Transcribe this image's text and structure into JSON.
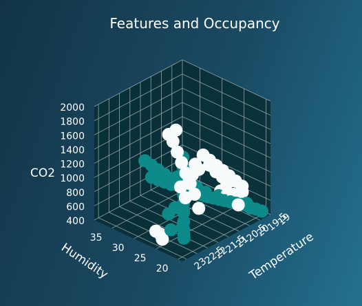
{
  "chart_data": {
    "type": "scatter3d",
    "title": "Features and Occupancy",
    "axes": {
      "x": {
        "label": "Humidity",
        "range": [
          19,
          39
        ],
        "ticks": [
          "20",
          "25",
          "30",
          "35"
        ],
        "tick_values": [
          20,
          25,
          30,
          35
        ]
      },
      "y": {
        "label": "Temperature",
        "range": [
          19,
          23.2
        ],
        "ticks": [
          "19",
          "19.5",
          "20",
          "20.5",
          "21",
          "21.5",
          "22",
          "22.5",
          "23"
        ],
        "tick_values": [
          19,
          19.5,
          20,
          20.5,
          21,
          21.5,
          22,
          22.5,
          23
        ]
      },
      "z": {
        "label": "CO2",
        "range": [
          400,
          2000
        ],
        "ticks": [
          "400",
          "600",
          "800",
          "1000",
          "1200",
          "1400",
          "1600",
          "1800",
          "2000"
        ],
        "tick_values": [
          400,
          600,
          800,
          1000,
          1200,
          1400,
          1600,
          1800,
          2000
        ]
      }
    },
    "grid": true,
    "colors": {
      "occupancy_0": "#0e8a8a",
      "occupancy_1": "#f7fbfb",
      "pane": "#072e33",
      "grid": "#9aa9ad",
      "text": "#ffffff"
    },
    "series": [
      {
        "color": "#0e8a8a",
        "points": [
          [
            20.0,
            19.2,
            450
          ],
          [
            20.8,
            19.3,
            470
          ],
          [
            21.6,
            19.4,
            480
          ],
          [
            22.4,
            19.4,
            490
          ],
          [
            23.2,
            19.5,
            500
          ],
          [
            24.0,
            19.6,
            510
          ],
          [
            24.8,
            19.7,
            520
          ],
          [
            25.6,
            19.8,
            530
          ],
          [
            26.4,
            19.9,
            540
          ],
          [
            27.2,
            20.0,
            550
          ],
          [
            28.0,
            20.1,
            560
          ],
          [
            28.8,
            20.2,
            580
          ],
          [
            29.6,
            20.3,
            600
          ],
          [
            30.4,
            20.4,
            620
          ],
          [
            31.2,
            20.5,
            640
          ],
          [
            22.5,
            19.4,
            520
          ],
          [
            24.5,
            19.6,
            560
          ],
          [
            26.5,
            19.9,
            590
          ],
          [
            28.5,
            20.1,
            610
          ],
          [
            30.5,
            20.3,
            640
          ],
          [
            32.0,
            20.6,
            680
          ],
          [
            33.0,
            20.8,
            700
          ],
          [
            34.0,
            20.9,
            720
          ],
          [
            35.0,
            21.0,
            740
          ],
          [
            36.0,
            21.1,
            760
          ],
          [
            33.5,
            20.7,
            750
          ],
          [
            34.5,
            20.8,
            800
          ],
          [
            35.5,
            20.9,
            850
          ],
          [
            36.5,
            21.0,
            900
          ],
          [
            37.5,
            21.1,
            950
          ],
          [
            30.0,
            20.4,
            700
          ],
          [
            31.0,
            20.6,
            760
          ],
          [
            32.0,
            20.7,
            820
          ],
          [
            29.5,
            20.3,
            680
          ],
          [
            22.5,
            22.4,
            620
          ],
          [
            23.0,
            22.3,
            700
          ],
          [
            23.5,
            22.2,
            800
          ],
          [
            24.0,
            22.1,
            900
          ],
          [
            24.5,
            22.0,
            1000
          ],
          [
            25.0,
            21.9,
            1100
          ],
          [
            25.5,
            21.8,
            1200
          ],
          [
            26.0,
            21.7,
            1300
          ],
          [
            26.5,
            21.6,
            1400
          ],
          [
            22.0,
            22.5,
            580
          ],
          [
            22.8,
            22.4,
            640
          ],
          [
            21.5,
            22.6,
            560
          ],
          [
            25.0,
            22.6,
            800
          ],
          [
            24.0,
            22.5,
            900
          ],
          [
            23.5,
            22.8,
            650
          ]
        ]
      },
      {
        "color": "#f7fbfb",
        "points": [
          [
            24.0,
            19.3,
            700
          ],
          [
            25.0,
            19.4,
            760
          ],
          [
            26.0,
            19.5,
            820
          ],
          [
            27.0,
            19.6,
            880
          ],
          [
            28.0,
            19.7,
            940
          ],
          [
            29.0,
            19.8,
            1000
          ],
          [
            30.0,
            19.9,
            1060
          ],
          [
            29.5,
            19.7,
            900
          ],
          [
            28.5,
            19.6,
            820
          ],
          [
            27.5,
            19.5,
            760
          ],
          [
            26.5,
            19.5,
            700
          ],
          [
            31.0,
            20.2,
            800
          ],
          [
            31.5,
            20.4,
            740
          ],
          [
            32.0,
            20.5,
            680
          ],
          [
            30.5,
            20.0,
            860
          ],
          [
            23.5,
            19.4,
            650
          ],
          [
            24.5,
            19.6,
            620
          ],
          [
            25.5,
            19.7,
            600
          ],
          [
            26.5,
            19.8,
            640
          ],
          [
            22.5,
            19.8,
            560
          ],
          [
            21.0,
            22.0,
            900
          ],
          [
            21.5,
            22.1,
            1100
          ],
          [
            22.0,
            22.2,
            1250
          ],
          [
            22.5,
            22.3,
            1400
          ],
          [
            23.0,
            22.4,
            1550
          ],
          [
            23.5,
            22.5,
            1700
          ],
          [
            24.0,
            22.6,
            1850
          ],
          [
            24.5,
            22.7,
            1950
          ],
          [
            23.8,
            22.5,
            2000
          ],
          [
            22.2,
            22.2,
            1300
          ],
          [
            21.8,
            22.0,
            1500
          ],
          [
            22.6,
            22.3,
            1050
          ],
          [
            23.2,
            22.4,
            1200
          ],
          [
            24.5,
            23.0,
            520
          ],
          [
            25.0,
            23.0,
            580
          ],
          [
            25.5,
            23.1,
            620
          ]
        ]
      }
    ]
  }
}
